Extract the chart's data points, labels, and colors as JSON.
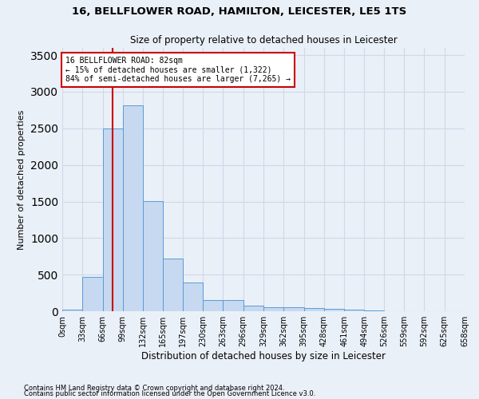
{
  "title_line1": "16, BELLFLOWER ROAD, HAMILTON, LEICESTER, LE5 1TS",
  "title_line2": "Size of property relative to detached houses in Leicester",
  "xlabel": "Distribution of detached houses by size in Leicester",
  "ylabel": "Number of detached properties",
  "bar_edges": [
    0,
    33,
    66,
    99,
    132,
    165,
    197,
    230,
    263,
    296,
    329,
    362,
    395,
    428,
    461,
    494,
    526,
    559,
    592,
    625,
    658
  ],
  "bar_heights": [
    20,
    470,
    2500,
    2820,
    1510,
    720,
    390,
    155,
    155,
    80,
    55,
    55,
    40,
    35,
    25,
    10,
    5,
    3,
    2,
    1
  ],
  "bar_color": "#c6d9f0",
  "bar_edge_color": "#5b9bd5",
  "property_line_x": 82,
  "annotation_text": "16 BELLFLOWER ROAD: 82sqm\n← 15% of detached houses are smaller (1,322)\n84% of semi-detached houses are larger (7,265) →",
  "annotation_box_color": "#ffffff",
  "annotation_box_edge_color": "#cc0000",
  "vline_color": "#cc0000",
  "grid_color": "#d0d8e8",
  "background_color": "#eaf0f8",
  "tick_labels": [
    "0sqm",
    "33sqm",
    "66sqm",
    "99sqm",
    "132sqm",
    "165sqm",
    "197sqm",
    "230sqm",
    "263sqm",
    "296sqm",
    "329sqm",
    "362sqm",
    "395sqm",
    "428sqm",
    "461sqm",
    "494sqm",
    "526sqm",
    "559sqm",
    "592sqm",
    "625sqm",
    "658sqm"
  ],
  "ylim": [
    0,
    3600
  ],
  "yticks": [
    0,
    500,
    1000,
    1500,
    2000,
    2500,
    3000,
    3500
  ],
  "footnote1": "Contains HM Land Registry data © Crown copyright and database right 2024.",
  "footnote2": "Contains public sector information licensed under the Open Government Licence v3.0."
}
